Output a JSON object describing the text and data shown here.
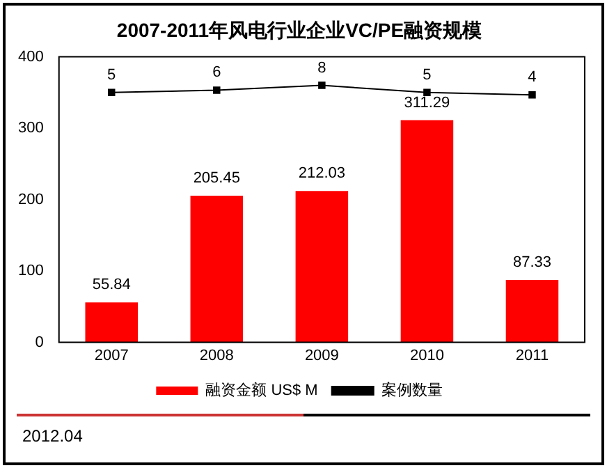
{
  "chart_data": {
    "type": "bar",
    "title": "2007-2011年风电行业企业VC/PE融资规模",
    "categories": [
      "2007",
      "2008",
      "2009",
      "2010",
      "2011"
    ],
    "series": [
      {
        "name": "融资金额 US$ M",
        "color": "#ff0000",
        "values": [
          55.84,
          205.45,
          212.03,
          311.29,
          87.33
        ]
      },
      {
        "name": "案例数量",
        "type": "line",
        "axis": "y2",
        "color": "#000000",
        "values": [
          5,
          6,
          8,
          5,
          4
        ]
      }
    ],
    "ylim": [
      0,
      400
    ],
    "yticks": [
      0,
      100,
      200,
      300,
      400
    ],
    "y2lim": [
      -100,
      20
    ],
    "grid": false,
    "legend": "bottom",
    "marker": "square",
    "data_labels": true,
    "annotations": [
      "2012.04"
    ]
  }
}
